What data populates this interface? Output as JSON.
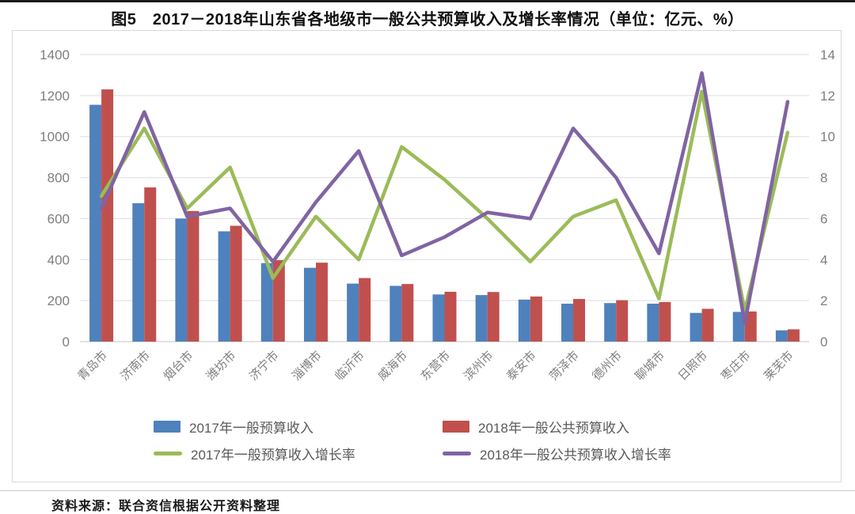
{
  "title": "图5　2017－2018年山东省各地级市一般公共预算收入及增长率情况（单位：亿元、%）",
  "source": "资料来源：联合资信根据公开资料整理",
  "colors": {
    "bar2017": "#4f81bd",
    "bar2018": "#c0504d",
    "line2017": "#9bbb59",
    "line2018": "#8064a2",
    "grid": "#dddddd",
    "axis_line": "#c5c5c5",
    "axis_text": "#7f7f7f",
    "legend_text": "#595959"
  },
  "chart_data": {
    "type": "bar",
    "subtype": "bar-line-combo",
    "title": "图5　2017－2018年山东省各地级市一般公共预算收入及增长率情况（单位：亿元、%）",
    "categories": [
      "青岛市",
      "济南市",
      "烟台市",
      "潍坊市",
      "济宁市",
      "淄博市",
      "临沂市",
      "威海市",
      "东营市",
      "滨州市",
      "泰安市",
      "菏泽市",
      "德州市",
      "聊城市",
      "日照市",
      "枣庄市",
      "莱芜市"
    ],
    "series": [
      {
        "name": "2017年一般预算收入",
        "type": "bar",
        "axis": "left",
        "color_key": "bar2017",
        "values": [
          1155,
          675,
          600,
          538,
          383,
          360,
          283,
          272,
          230,
          227,
          205,
          185,
          188,
          185,
          140,
          145,
          55
        ]
      },
      {
        "name": "2018年一般公共预算收入",
        "type": "bar",
        "axis": "left",
        "color_key": "bar2018",
        "values": [
          1230,
          752,
          637,
          565,
          397,
          385,
          310,
          281,
          243,
          242,
          220,
          208,
          202,
          193,
          160,
          147,
          60
        ]
      },
      {
        "name": "2017年一般预算收入增长率",
        "type": "line",
        "axis": "right",
        "color_key": "line2017",
        "values": [
          7.1,
          10.4,
          6.5,
          8.5,
          3.1,
          6.1,
          4.0,
          9.5,
          7.9,
          6.0,
          3.9,
          6.1,
          6.9,
          2.1,
          12.2,
          1.5,
          10.2
        ]
      },
      {
        "name": "2018年一般公共预算收入增长率",
        "type": "line",
        "axis": "right",
        "color_key": "line2018",
        "values": [
          6.5,
          11.2,
          6.1,
          6.5,
          3.9,
          6.8,
          9.3,
          4.2,
          5.1,
          6.3,
          6.0,
          10.4,
          8.0,
          4.3,
          13.1,
          0.9,
          11.7
        ]
      }
    ],
    "left_axis": {
      "label": "亿元",
      "min": 0,
      "max": 1400,
      "ticks": [
        0,
        200,
        400,
        600,
        800,
        1000,
        1200,
        1400
      ]
    },
    "right_axis": {
      "label": "%",
      "min": 0,
      "max": 14,
      "ticks": [
        0,
        2,
        4,
        6,
        8,
        10,
        12,
        14
      ]
    },
    "grid": true,
    "legend_position": "bottom",
    "x_label_rotation": -45
  }
}
